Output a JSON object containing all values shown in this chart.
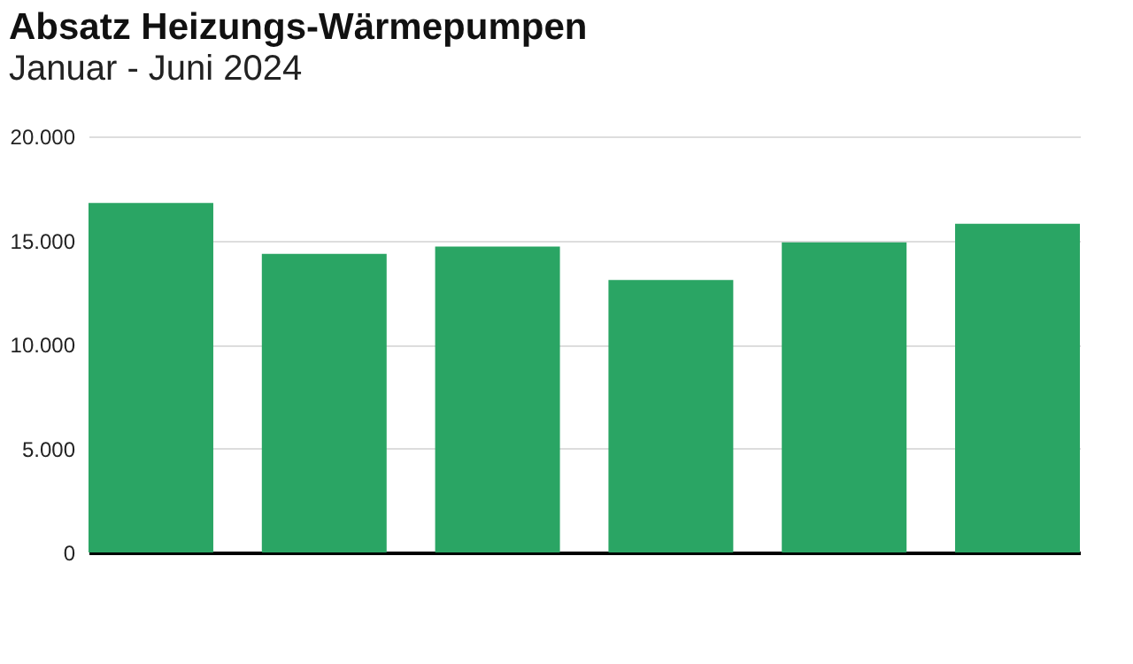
{
  "chart_data": {
    "type": "bar",
    "title": "Absatz Heizungs-Wärmepumpen",
    "subtitle": "Januar - Juni 2024",
    "categories": [
      null,
      null,
      null,
      null,
      null,
      null
    ],
    "values": [
      16800,
      14350,
      14700,
      13100,
      14900,
      15800
    ],
    "color": "#2aa564",
    "ylim": [
      0,
      20000
    ],
    "yticks": [
      {
        "value": 0,
        "label": "0"
      },
      {
        "value": 5000,
        "label": "5.000"
      },
      {
        "value": 10000,
        "label": "10.000"
      },
      {
        "value": 15000,
        "label": "15.000"
      },
      {
        "value": 20000,
        "label": "20.000"
      }
    ],
    "grid": "y",
    "tick_labels": "y"
  }
}
